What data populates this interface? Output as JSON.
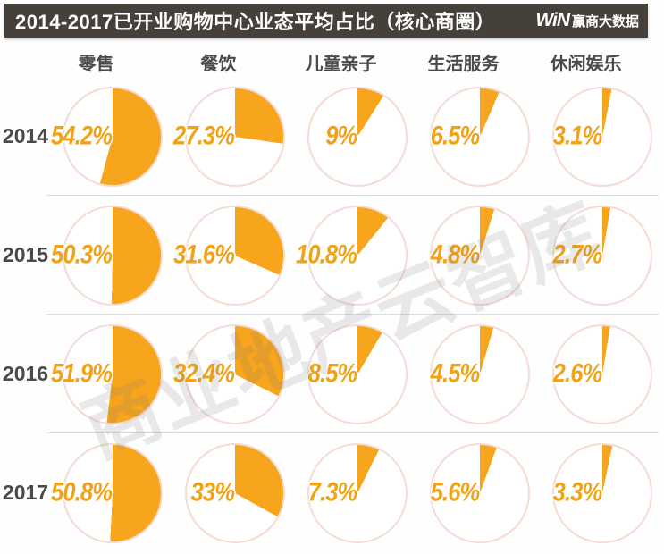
{
  "header": {
    "title": "2014-2017已开业购物中心业态平均占比（核心商圈）",
    "logo_mark": "WiN",
    "logo_text": "赢商大数据"
  },
  "watermark": {
    "text": "商业地产云智库"
  },
  "colors": {
    "slice_orange": "#f7a51c",
    "ring_pink": "#f5dbd3",
    "titlebar_bg": "#45413a",
    "divider_gray": "#dedede",
    "label_orange": "#f2a216",
    "text_dark": "#4a4a4a"
  },
  "chart_data": {
    "type": "pie",
    "title": "2014-2017已开业购物中心业态平均占比（核心商圈）",
    "unit": "%",
    "categories": [
      "零售",
      "餐饮",
      "儿童亲子",
      "生活服务",
      "休闲娱乐"
    ],
    "series": [
      {
        "name": "2014",
        "values": [
          54.2,
          27.3,
          9,
          6.5,
          3.1
        ],
        "labels": [
          "54.2%",
          "27.3%",
          "9%",
          "6.5%",
          "3.1%"
        ]
      },
      {
        "name": "2015",
        "values": [
          50.3,
          31.6,
          10.8,
          4.8,
          2.7
        ],
        "labels": [
          "50.3%",
          "31.6%",
          "10.8%",
          "4.8%",
          "2.7%"
        ]
      },
      {
        "name": "2016",
        "values": [
          51.9,
          32.4,
          8.5,
          4.5,
          2.6
        ],
        "labels": [
          "51.9%",
          "32.4%",
          "8.5%",
          "4.5%",
          "2.6%"
        ]
      },
      {
        "name": "2017",
        "values": [
          50.8,
          33,
          7.3,
          5.6,
          3.3
        ],
        "labels": [
          "50.8%",
          "33%",
          "7.3%",
          "5.6%",
          "3.3%"
        ]
      }
    ],
    "layout": {
      "grid": "rows are years, columns are categories",
      "slice_start": "12 o'clock, clockwise",
      "legend": "none",
      "grid_lines": "light horizontal dividers between year rows"
    }
  }
}
